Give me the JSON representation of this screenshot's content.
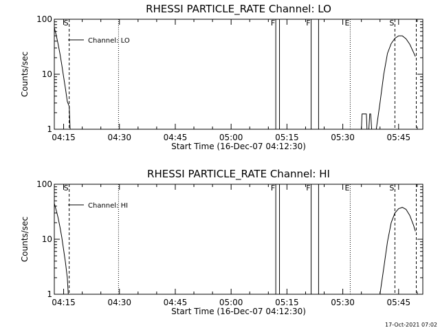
{
  "footer": {
    "timestamp": "17-Oct-2021 07:02"
  },
  "chart_data": [
    {
      "type": "line",
      "title": "RHESSI PARTICLE_RATE Channel: LO",
      "xlabel": "Start Time (16-Dec-07 04:12:30)",
      "ylabel": "Counts/sec",
      "yscale": "log",
      "ylim": [
        1,
        100
      ],
      "xlim": [
        "04:12:30",
        "05:51:30"
      ],
      "xticks": [
        "04:15",
        "04:30",
        "04:45",
        "05:00",
        "05:15",
        "05:30",
        "05:45"
      ],
      "yticks": [
        "1",
        "10",
        "100"
      ],
      "legend_position": "top-left",
      "series": [
        {
          "name": "Channel: LO",
          "points": [
            [
              "04:12:30",
              70
            ],
            [
              "04:13:00",
              52
            ],
            [
              "04:13:30",
              36
            ],
            [
              "04:14:00",
              24
            ],
            [
              "04:14:30",
              15
            ],
            [
              "04:15:00",
              9
            ],
            [
              "04:15:30",
              5.5
            ],
            [
              "04:16:00",
              3.2
            ],
            [
              "04:16:30",
              2.6
            ],
            [
              "04:16:45",
              1
            ],
            null,
            [
              "05:35:00",
              1
            ],
            [
              "05:35:10",
              1.9
            ],
            [
              "05:36:20",
              1.9
            ],
            [
              "05:36:30",
              1
            ],
            null,
            [
              "05:37:00",
              1
            ],
            [
              "05:37:15",
              1.9
            ],
            [
              "05:37:30",
              1.9
            ],
            [
              "05:37:45",
              1
            ],
            null,
            [
              "05:39:00",
              1
            ],
            [
              "05:40:00",
              3
            ],
            [
              "05:41:00",
              10
            ],
            [
              "05:42:00",
              24
            ],
            [
              "05:43:00",
              36
            ],
            [
              "05:44:00",
              45
            ],
            [
              "05:45:00",
              50
            ],
            [
              "05:46:00",
              50
            ],
            [
              "05:47:00",
              44
            ],
            [
              "05:48:00",
              35
            ],
            [
              "05:49:00",
              25
            ],
            [
              "05:49:30",
              21
            ]
          ]
        }
      ],
      "markers": [
        {
          "label": "S",
          "time": "04:16:30",
          "style": "dashed"
        },
        {
          "label": "",
          "time": "04:29:45",
          "style": "dotted"
        },
        {
          "label": "F",
          "time": "05:12:00",
          "style": "solid",
          "end": "05:13:00"
        },
        {
          "label": "F",
          "time": "05:21:30",
          "style": "solid",
          "end": "05:23:30"
        },
        {
          "label": "E",
          "time": "05:32:00",
          "style": "dotted"
        },
        {
          "label": "S",
          "time": "05:44:00",
          "style": "dashed"
        },
        {
          "label": "",
          "time": "05:49:45",
          "style": "dashed"
        }
      ]
    },
    {
      "type": "line",
      "title": "RHESSI PARTICLE_RATE Channel: HI",
      "xlabel": "Start Time (16-Dec-07 04:12:30)",
      "ylabel": "Counts/sec",
      "yscale": "log",
      "ylim": [
        1,
        100
      ],
      "xlim": [
        "04:12:30",
        "05:51:30"
      ],
      "xticks": [
        "04:15",
        "04:30",
        "04:45",
        "05:00",
        "05:15",
        "05:30",
        "05:45"
      ],
      "yticks": [
        "1",
        "10",
        "100"
      ],
      "legend_position": "top-left",
      "series": [
        {
          "name": "Channel: HI",
          "points": [
            [
              "04:12:30",
              45
            ],
            [
              "04:13:00",
              34
            ],
            [
              "04:13:30",
              25
            ],
            [
              "04:14:00",
              17
            ],
            [
              "04:14:30",
              11
            ],
            [
              "04:15:00",
              6.5
            ],
            [
              "04:15:30",
              3.8
            ],
            [
              "04:16:00",
              2
            ],
            [
              "04:16:15",
              1
            ],
            null,
            [
              "05:40:00",
              1
            ],
            [
              "05:41:00",
              3
            ],
            [
              "05:42:00",
              9
            ],
            [
              "05:43:00",
              20
            ],
            [
              "05:44:00",
              30
            ],
            [
              "05:45:00",
              36
            ],
            [
              "05:46:00",
              38
            ],
            [
              "05:47:00",
              35
            ],
            [
              "05:48:00",
              27
            ],
            [
              "05:49:00",
              18
            ],
            [
              "05:49:30",
              14
            ]
          ]
        }
      ],
      "markers": [
        {
          "label": "S",
          "time": "04:16:30",
          "style": "dashed"
        },
        {
          "label": "",
          "time": "04:29:45",
          "style": "dotted"
        },
        {
          "label": "F",
          "time": "05:12:00",
          "style": "solid",
          "end": "05:13:00"
        },
        {
          "label": "F",
          "time": "05:21:30",
          "style": "solid",
          "end": "05:23:30"
        },
        {
          "label": "E",
          "time": "05:32:00",
          "style": "dotted"
        },
        {
          "label": "S",
          "time": "05:44:00",
          "style": "dashed"
        },
        {
          "label": "",
          "time": "05:49:45",
          "style": "dashed"
        }
      ]
    }
  ]
}
